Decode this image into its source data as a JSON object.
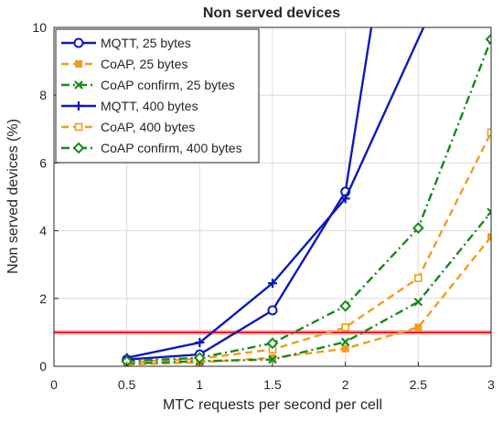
{
  "chart_data": {
    "type": "line",
    "title": "Non served devices",
    "xlabel": "MTC requests per second per cell",
    "ylabel": "Non served devices (%)",
    "xlim": [
      0,
      3
    ],
    "ylim": [
      0,
      10
    ],
    "xticks": [
      "0",
      "0.5",
      "1",
      "1.5",
      "2",
      "2.5",
      "3"
    ],
    "yticks": [
      "0",
      "2",
      "4",
      "6",
      "8",
      "10"
    ],
    "grid": true,
    "legend_position": "top-left",
    "threshold": {
      "y": 1,
      "color": "#e31a1c"
    },
    "series": [
      {
        "name": "MQTT, 25 bytes",
        "color": "#0f1bb5",
        "dash": "solid",
        "marker": "circle",
        "x": [
          0.5,
          1,
          1.5,
          2,
          2.2
        ],
        "y": [
          0.2,
          0.35,
          1.65,
          5.15,
          10.6
        ]
      },
      {
        "name": "CoAP, 25 bytes",
        "color": "#f39c1b",
        "dash": "dashed",
        "marker": "square-filled",
        "x": [
          0.5,
          1,
          1.5,
          2,
          2.5,
          3
        ],
        "y": [
          0.05,
          0.12,
          0.25,
          0.52,
          1.15,
          3.82
        ]
      },
      {
        "name": "CoAP confirm, 25 bytes",
        "color": "#18891b",
        "dash": "dashdot",
        "marker": "x",
        "x": [
          0.5,
          1,
          1.5,
          2,
          2.5,
          3
        ],
        "y": [
          0.08,
          0.15,
          0.2,
          0.72,
          1.9,
          4.55
        ]
      },
      {
        "name": "MQTT, 400 bytes",
        "color": "#0f1bb5",
        "dash": "solid",
        "marker": "plus",
        "x": [
          0.5,
          1,
          1.5,
          2,
          2.6
        ],
        "y": [
          0.25,
          0.7,
          2.45,
          4.95,
          10.6
        ]
      },
      {
        "name": "CoAP, 400 bytes",
        "color": "#f39c1b",
        "dash": "dashed",
        "marker": "square-open",
        "x": [
          0.5,
          1,
          1.5,
          2,
          2.5,
          3
        ],
        "y": [
          0.12,
          0.22,
          0.5,
          1.15,
          2.6,
          6.9
        ]
      },
      {
        "name": "CoAP confirm, 400 bytes",
        "color": "#18891b",
        "dash": "dashdot",
        "marker": "diamond",
        "x": [
          0.5,
          1,
          1.5,
          2,
          2.5,
          3
        ],
        "y": [
          0.15,
          0.25,
          0.68,
          1.78,
          4.08,
          9.65
        ]
      }
    ]
  }
}
